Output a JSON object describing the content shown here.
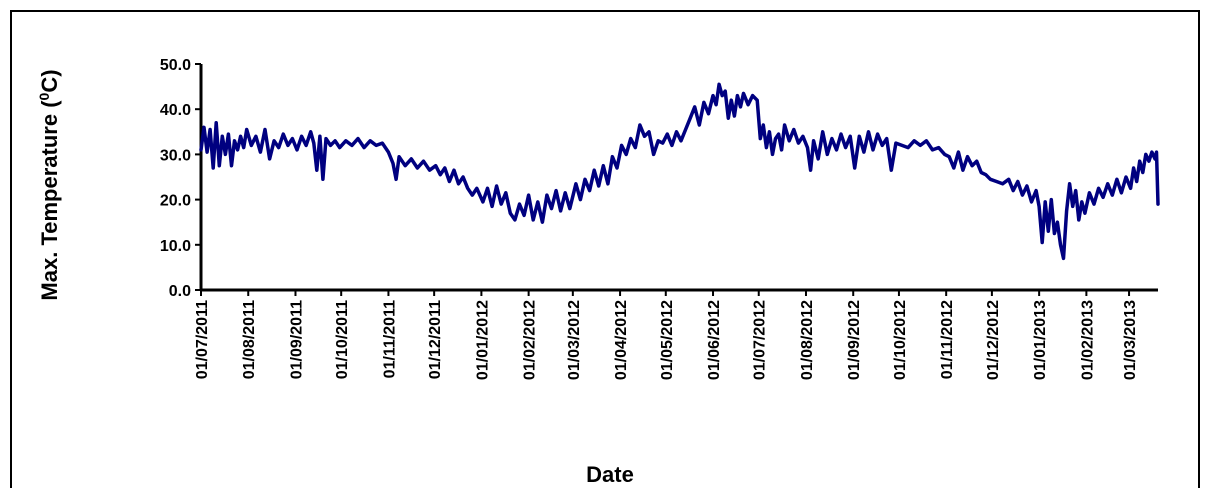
{
  "chart_data": {
    "type": "line",
    "xlabel": "Date",
    "ylabel_main": "Max. Temperature (",
    "ylabel_sup": "0",
    "ylabel_unit": "C)",
    "ylim": [
      0,
      50
    ],
    "y_ticks": [
      "0.0",
      "10.0",
      "20.0",
      "30.0",
      "40.0",
      "50.0"
    ],
    "x_range": [
      "2011-07-01",
      "2013-03-20"
    ],
    "x_tick_labels": [
      "01/07/2011",
      "01/08/2011",
      "01/09/2011",
      "01/10/2011",
      "01/11/2011",
      "01/12/2011",
      "01/01/2012",
      "01/02/2012",
      "01/03/2012",
      "01/04/2012",
      "01/05/2012",
      "01/06/2012",
      "01/07/2012",
      "01/08/2012",
      "01/09/2012",
      "01/10/2012",
      "01/11/2012",
      "01/12/2012",
      "01/01/2013",
      "01/02/2013",
      "01/03/2013"
    ],
    "x_tick_dates": [
      "2011-07-01",
      "2011-08-01",
      "2011-09-01",
      "2011-10-01",
      "2011-11-01",
      "2011-12-01",
      "2012-01-01",
      "2012-02-01",
      "2012-03-01",
      "2012-04-01",
      "2012-05-01",
      "2012-06-01",
      "2012-07-01",
      "2012-08-01",
      "2012-09-01",
      "2012-10-01",
      "2012-11-01",
      "2012-12-01",
      "2013-01-01",
      "2013-02-01",
      "2013-03-01"
    ],
    "series": [
      {
        "color": "#000080",
        "points": [
          [
            "2011-07-01",
            31.0
          ],
          [
            "2011-07-03",
            36.0
          ],
          [
            "2011-07-05",
            30.5
          ],
          [
            "2011-07-07",
            35.5
          ],
          [
            "2011-07-09",
            27.0
          ],
          [
            "2011-07-11",
            37.0
          ],
          [
            "2011-07-13",
            27.5
          ],
          [
            "2011-07-15",
            34.0
          ],
          [
            "2011-07-17",
            30.0
          ],
          [
            "2011-07-19",
            34.5
          ],
          [
            "2011-07-21",
            27.5
          ],
          [
            "2011-07-23",
            33.0
          ],
          [
            "2011-07-25",
            31.0
          ],
          [
            "2011-07-27",
            34.0
          ],
          [
            "2011-07-29",
            31.5
          ],
          [
            "2011-07-31",
            35.5
          ],
          [
            "2011-08-03",
            32.0
          ],
          [
            "2011-08-06",
            34.0
          ],
          [
            "2011-08-09",
            30.5
          ],
          [
            "2011-08-12",
            35.5
          ],
          [
            "2011-08-15",
            29.0
          ],
          [
            "2011-08-18",
            33.0
          ],
          [
            "2011-08-21",
            31.5
          ],
          [
            "2011-08-24",
            34.5
          ],
          [
            "2011-08-27",
            32.0
          ],
          [
            "2011-08-30",
            33.5
          ],
          [
            "2011-09-02",
            31.0
          ],
          [
            "2011-09-05",
            34.0
          ],
          [
            "2011-09-08",
            32.0
          ],
          [
            "2011-09-11",
            35.0
          ],
          [
            "2011-09-13",
            32.5
          ],
          [
            "2011-09-15",
            26.5
          ],
          [
            "2011-09-17",
            34.0
          ],
          [
            "2011-09-19",
            24.5
          ],
          [
            "2011-09-21",
            33.5
          ],
          [
            "2011-09-24",
            32.0
          ],
          [
            "2011-09-27",
            33.0
          ],
          [
            "2011-09-30",
            31.5
          ],
          [
            "2011-10-04",
            33.0
          ],
          [
            "2011-10-08",
            32.0
          ],
          [
            "2011-10-12",
            33.5
          ],
          [
            "2011-10-16",
            31.5
          ],
          [
            "2011-10-20",
            33.0
          ],
          [
            "2011-10-24",
            32.0
          ],
          [
            "2011-10-28",
            32.5
          ],
          [
            "2011-11-01",
            30.5
          ],
          [
            "2011-11-04",
            28.0
          ],
          [
            "2011-11-06",
            24.5
          ],
          [
            "2011-11-08",
            29.5
          ],
          [
            "2011-11-12",
            27.5
          ],
          [
            "2011-11-16",
            29.0
          ],
          [
            "2011-11-20",
            27.0
          ],
          [
            "2011-11-24",
            28.5
          ],
          [
            "2011-11-28",
            26.5
          ],
          [
            "2011-12-02",
            27.5
          ],
          [
            "2011-12-05",
            25.5
          ],
          [
            "2011-12-08",
            27.0
          ],
          [
            "2011-12-11",
            24.0
          ],
          [
            "2011-12-14",
            26.5
          ],
          [
            "2011-12-17",
            23.5
          ],
          [
            "2011-12-20",
            25.0
          ],
          [
            "2011-12-23",
            22.5
          ],
          [
            "2011-12-26",
            21.0
          ],
          [
            "2011-12-29",
            22.5
          ],
          [
            "2012-01-02",
            19.5
          ],
          [
            "2012-01-05",
            22.5
          ],
          [
            "2012-01-08",
            18.5
          ],
          [
            "2012-01-11",
            23.0
          ],
          [
            "2012-01-14",
            19.0
          ],
          [
            "2012-01-17",
            21.5
          ],
          [
            "2012-01-20",
            17.0
          ],
          [
            "2012-01-23",
            15.5
          ],
          [
            "2012-01-26",
            19.0
          ],
          [
            "2012-01-29",
            16.5
          ],
          [
            "2012-02-01",
            21.0
          ],
          [
            "2012-02-04",
            15.5
          ],
          [
            "2012-02-07",
            19.5
          ],
          [
            "2012-02-10",
            15.0
          ],
          [
            "2012-02-13",
            21.0
          ],
          [
            "2012-02-16",
            18.0
          ],
          [
            "2012-02-19",
            22.0
          ],
          [
            "2012-02-22",
            17.5
          ],
          [
            "2012-02-25",
            21.5
          ],
          [
            "2012-02-28",
            18.0
          ],
          [
            "2012-03-03",
            23.5
          ],
          [
            "2012-03-06",
            20.0
          ],
          [
            "2012-03-09",
            24.5
          ],
          [
            "2012-03-12",
            22.0
          ],
          [
            "2012-03-15",
            26.5
          ],
          [
            "2012-03-18",
            23.0
          ],
          [
            "2012-03-21",
            27.5
          ],
          [
            "2012-03-24",
            23.5
          ],
          [
            "2012-03-27",
            29.5
          ],
          [
            "2012-03-30",
            27.0
          ],
          [
            "2012-04-02",
            32.0
          ],
          [
            "2012-04-05",
            30.0
          ],
          [
            "2012-04-08",
            33.5
          ],
          [
            "2012-04-11",
            31.5
          ],
          [
            "2012-04-14",
            36.5
          ],
          [
            "2012-04-17",
            34.0
          ],
          [
            "2012-04-20",
            35.0
          ],
          [
            "2012-04-23",
            30.0
          ],
          [
            "2012-04-26",
            33.0
          ],
          [
            "2012-04-29",
            32.5
          ],
          [
            "2012-05-02",
            34.5
          ],
          [
            "2012-05-05",
            32.0
          ],
          [
            "2012-05-08",
            35.0
          ],
          [
            "2012-05-11",
            33.0
          ],
          [
            "2012-05-14",
            35.5
          ],
          [
            "2012-05-17",
            38.0
          ],
          [
            "2012-05-20",
            40.5
          ],
          [
            "2012-05-23",
            36.5
          ],
          [
            "2012-05-26",
            41.5
          ],
          [
            "2012-05-29",
            39.0
          ],
          [
            "2012-06-01",
            43.0
          ],
          [
            "2012-06-03",
            41.0
          ],
          [
            "2012-06-05",
            45.5
          ],
          [
            "2012-06-07",
            43.0
          ],
          [
            "2012-06-09",
            44.0
          ],
          [
            "2012-06-11",
            38.0
          ],
          [
            "2012-06-13",
            42.0
          ],
          [
            "2012-06-15",
            38.5
          ],
          [
            "2012-06-17",
            43.0
          ],
          [
            "2012-06-19",
            40.5
          ],
          [
            "2012-06-21",
            43.5
          ],
          [
            "2012-06-24",
            41.0
          ],
          [
            "2012-06-27",
            43.0
          ],
          [
            "2012-06-30",
            42.0
          ],
          [
            "2012-07-02",
            33.5
          ],
          [
            "2012-07-04",
            36.5
          ],
          [
            "2012-07-06",
            31.5
          ],
          [
            "2012-07-08",
            35.0
          ],
          [
            "2012-07-10",
            30.0
          ],
          [
            "2012-07-12",
            33.5
          ],
          [
            "2012-07-14",
            34.5
          ],
          [
            "2012-07-16",
            31.0
          ],
          [
            "2012-07-18",
            36.5
          ],
          [
            "2012-07-21",
            33.0
          ],
          [
            "2012-07-24",
            35.5
          ],
          [
            "2012-07-27",
            32.5
          ],
          [
            "2012-07-30",
            34.0
          ],
          [
            "2012-08-02",
            31.5
          ],
          [
            "2012-08-04",
            26.5
          ],
          [
            "2012-08-06",
            33.0
          ],
          [
            "2012-08-09",
            29.0
          ],
          [
            "2012-08-12",
            35.0
          ],
          [
            "2012-08-15",
            30.0
          ],
          [
            "2012-08-18",
            33.5
          ],
          [
            "2012-08-21",
            31.0
          ],
          [
            "2012-08-24",
            34.5
          ],
          [
            "2012-08-27",
            31.5
          ],
          [
            "2012-08-30",
            34.0
          ],
          [
            "2012-09-02",
            27.0
          ],
          [
            "2012-09-05",
            34.0
          ],
          [
            "2012-09-08",
            30.5
          ],
          [
            "2012-09-11",
            35.0
          ],
          [
            "2012-09-14",
            31.0
          ],
          [
            "2012-09-17",
            34.5
          ],
          [
            "2012-09-20",
            32.0
          ],
          [
            "2012-09-23",
            33.5
          ],
          [
            "2012-09-26",
            26.5
          ],
          [
            "2012-09-29",
            32.5
          ],
          [
            "2012-10-03",
            32.0
          ],
          [
            "2012-10-07",
            31.5
          ],
          [
            "2012-10-11",
            33.0
          ],
          [
            "2012-10-15",
            32.0
          ],
          [
            "2012-10-19",
            33.0
          ],
          [
            "2012-10-23",
            31.0
          ],
          [
            "2012-10-27",
            31.5
          ],
          [
            "2012-10-31",
            30.0
          ],
          [
            "2012-11-03",
            29.5
          ],
          [
            "2012-11-06",
            27.0
          ],
          [
            "2012-11-09",
            30.5
          ],
          [
            "2012-11-12",
            26.5
          ],
          [
            "2012-11-15",
            29.5
          ],
          [
            "2012-11-18",
            27.5
          ],
          [
            "2012-11-21",
            28.5
          ],
          [
            "2012-11-24",
            26.0
          ],
          [
            "2012-11-27",
            25.5
          ],
          [
            "2012-11-30",
            24.5
          ],
          [
            "2012-12-04",
            24.0
          ],
          [
            "2012-12-08",
            23.5
          ],
          [
            "2012-12-12",
            24.5
          ],
          [
            "2012-12-15",
            22.0
          ],
          [
            "2012-12-18",
            24.0
          ],
          [
            "2012-12-21",
            21.0
          ],
          [
            "2012-12-24",
            23.0
          ],
          [
            "2012-12-27",
            19.5
          ],
          [
            "2012-12-30",
            22.0
          ],
          [
            "2013-01-01",
            18.5
          ],
          [
            "2013-01-03",
            10.5
          ],
          [
            "2013-01-05",
            19.5
          ],
          [
            "2013-01-07",
            13.0
          ],
          [
            "2013-01-09",
            20.0
          ],
          [
            "2013-01-11",
            12.5
          ],
          [
            "2013-01-13",
            15.0
          ],
          [
            "2013-01-15",
            10.0
          ],
          [
            "2013-01-17",
            7.0
          ],
          [
            "2013-01-19",
            17.5
          ],
          [
            "2013-01-21",
            23.5
          ],
          [
            "2013-01-23",
            18.5
          ],
          [
            "2013-01-25",
            22.0
          ],
          [
            "2013-01-27",
            15.5
          ],
          [
            "2013-01-29",
            19.5
          ],
          [
            "2013-01-31",
            17.0
          ],
          [
            "2013-02-03",
            21.5
          ],
          [
            "2013-02-06",
            19.0
          ],
          [
            "2013-02-09",
            22.5
          ],
          [
            "2013-02-12",
            20.5
          ],
          [
            "2013-02-15",
            23.5
          ],
          [
            "2013-02-18",
            21.0
          ],
          [
            "2013-02-21",
            24.5
          ],
          [
            "2013-02-24",
            21.5
          ],
          [
            "2013-02-27",
            25.0
          ],
          [
            "2013-03-02",
            22.5
          ],
          [
            "2013-03-04",
            27.0
          ],
          [
            "2013-03-06",
            24.0
          ],
          [
            "2013-03-08",
            28.5
          ],
          [
            "2013-03-10",
            26.0
          ],
          [
            "2013-03-12",
            30.0
          ],
          [
            "2013-03-14",
            28.5
          ],
          [
            "2013-03-16",
            30.5
          ],
          [
            "2013-03-18",
            29.0
          ],
          [
            "2013-03-19",
            30.5
          ],
          [
            "2013-03-20",
            19.0
          ]
        ]
      }
    ]
  }
}
